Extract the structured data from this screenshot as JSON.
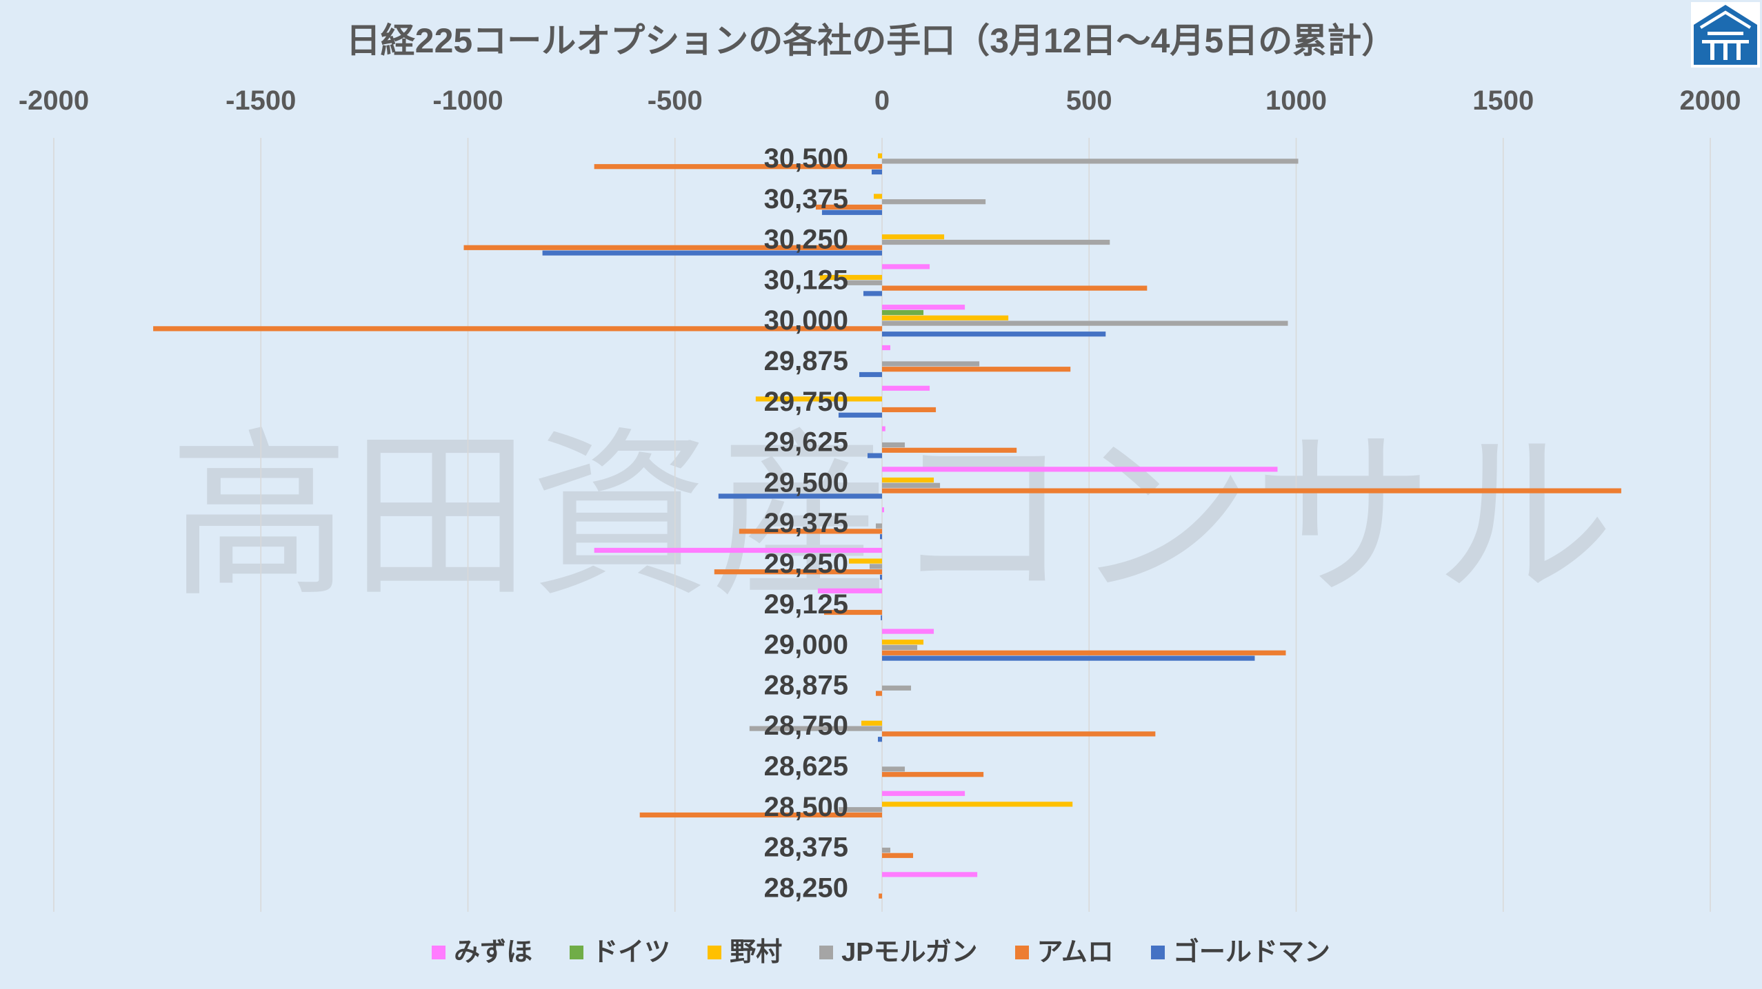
{
  "colors": {
    "background": "#DEEBF7",
    "title_text": "#595959",
    "axis_text": "#595959",
    "category_text": "#404040",
    "gridline": "#D9D9D9"
  },
  "logo": {
    "icon": "house-emblem-logo",
    "color": "#1C6BB1"
  },
  "watermark": {
    "text": "高田資産コンサル"
  },
  "chart_data": {
    "type": "bar",
    "orientation": "horizontal",
    "title": "日経225コールオプションの各社の手口（3月12日～4月5日の累計）",
    "x_axis_position": "top",
    "xlim": [
      -2000,
      2000
    ],
    "x_ticks": [
      "-2000",
      "-1500",
      "-1000",
      "-500",
      "0",
      "500",
      "1000",
      "1500",
      "2000"
    ],
    "grid": true,
    "legend_position": "bottom",
    "categories": [
      "30,500",
      "30,375",
      "30,250",
      "30,125",
      "30,000",
      "29,875",
      "29,750",
      "29,625",
      "29,500",
      "29,375",
      "29,250",
      "29,125",
      "29,000",
      "28,875",
      "28,750",
      "28,625",
      "28,500",
      "28,375",
      "28,250"
    ],
    "series": [
      {
        "name": "みずほ",
        "color": "#FF7CFF",
        "values": [
          0,
          0,
          0,
          115,
          200,
          20,
          115,
          8,
          955,
          5,
          -695,
          -155,
          125,
          0,
          0,
          0,
          200,
          0,
          230
        ]
      },
      {
        "name": "ドイツ",
        "color": "#70AD47",
        "values": [
          0,
          0,
          0,
          0,
          100,
          0,
          0,
          0,
          0,
          0,
          0,
          0,
          0,
          0,
          0,
          0,
          0,
          0,
          0
        ]
      },
      {
        "name": "野村",
        "color": "#FFC000",
        "values": [
          -10,
          -20,
          150,
          -150,
          305,
          0,
          -305,
          0,
          125,
          0,
          -80,
          0,
          100,
          0,
          -50,
          0,
          460,
          0,
          0
        ]
      },
      {
        "name": "JPモルガン",
        "color": "#A5A5A5",
        "values": [
          1005,
          250,
          550,
          -90,
          980,
          235,
          0,
          55,
          140,
          -15,
          -30,
          0,
          85,
          70,
          -320,
          55,
          -105,
          20,
          0
        ]
      },
      {
        "name": "アムロ",
        "color": "#ED7D31",
        "values": [
          -695,
          -160,
          -1010,
          640,
          -1760,
          455,
          130,
          325,
          1785,
          -345,
          -405,
          -140,
          975,
          -15,
          660,
          245,
          -585,
          75,
          -8
        ]
      },
      {
        "name": "ゴールドマン",
        "color": "#4472C4",
        "values": [
          -25,
          -145,
          -820,
          -45,
          540,
          -55,
          -105,
          -35,
          -395,
          -5,
          -5,
          -3,
          900,
          0,
          -10,
          0,
          0,
          0,
          0
        ]
      }
    ]
  }
}
